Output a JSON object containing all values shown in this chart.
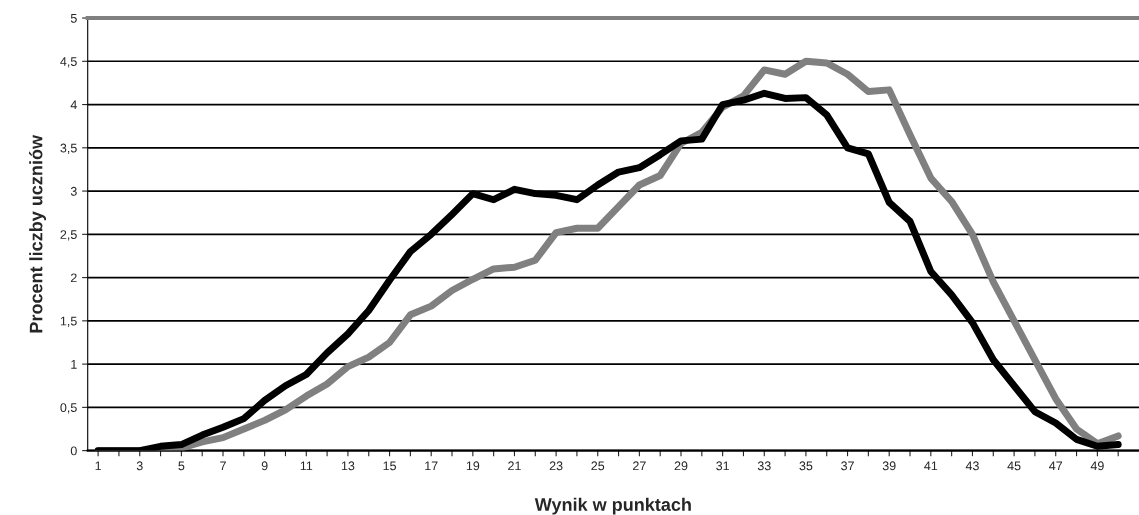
{
  "chart_data": {
    "type": "line",
    "xlabel": "Wynik w punktach",
    "ylabel": "Procent liczby uczniów",
    "categories": [
      "1",
      null,
      "3",
      null,
      "5",
      null,
      "7",
      null,
      "9",
      null,
      "11",
      null,
      "13",
      null,
      "15",
      null,
      "17",
      null,
      "19",
      null,
      "21",
      null,
      "23",
      null,
      "25",
      null,
      "27",
      null,
      "29",
      null,
      "31",
      null,
      "33",
      null,
      "35",
      null,
      "37",
      null,
      "39",
      null,
      "41",
      null,
      "43",
      null,
      "45",
      null,
      "47",
      null,
      "49",
      null
    ],
    "series": [
      {
        "color": "#808080",
        "values": [
          0,
          0,
          0,
          0,
          0.03,
          0.1,
          0.15,
          0.25,
          0.35,
          0.47,
          0.63,
          0.77,
          0.97,
          1.08,
          1.25,
          1.57,
          1.67,
          1.85,
          1.98,
          2.1,
          2.12,
          2.2,
          2.52,
          2.57,
          2.57,
          2.82,
          3.07,
          3.18,
          3.55,
          3.68,
          3.97,
          4.1,
          4.4,
          4.35,
          4.5,
          4.48,
          4.35,
          4.15,
          4.17,
          3.65,
          3.15,
          2.88,
          2.5,
          1.95,
          1.5,
          1.05,
          0.6,
          0.25,
          0.08,
          0.17
        ]
      },
      {
        "color": "#000000",
        "values": [
          0,
          0,
          0,
          0.05,
          0.07,
          0.18,
          0.27,
          0.37,
          0.58,
          0.75,
          0.88,
          1.13,
          1.35,
          1.62,
          1.97,
          2.3,
          2.5,
          2.73,
          2.97,
          2.9,
          3.02,
          2.97,
          2.95,
          2.9,
          3.07,
          3.22,
          3.27,
          3.42,
          3.58,
          3.6,
          4.0,
          4.05,
          4.13,
          4.07,
          4.08,
          3.88,
          3.5,
          3.43,
          2.87,
          2.65,
          2.07,
          1.8,
          1.48,
          1.05,
          0.75,
          0.45,
          0.32,
          0.13,
          0.05,
          0.07
        ]
      }
    ],
    "ylim": [
      0,
      5
    ],
    "yticks": [
      0,
      {
        "value": 0.5,
        "label": "0,5"
      },
      1,
      {
        "value": 1.5,
        "label": "1,5"
      },
      2,
      {
        "value": 2.5,
        "label": "2,5"
      },
      3,
      {
        "value": 3.5,
        "label": "3,5"
      },
      4,
      {
        "value": 4.5,
        "label": "4,5"
      },
      5
    ],
    "grid": "y",
    "line_style": "solid",
    "marker": "none"
  }
}
